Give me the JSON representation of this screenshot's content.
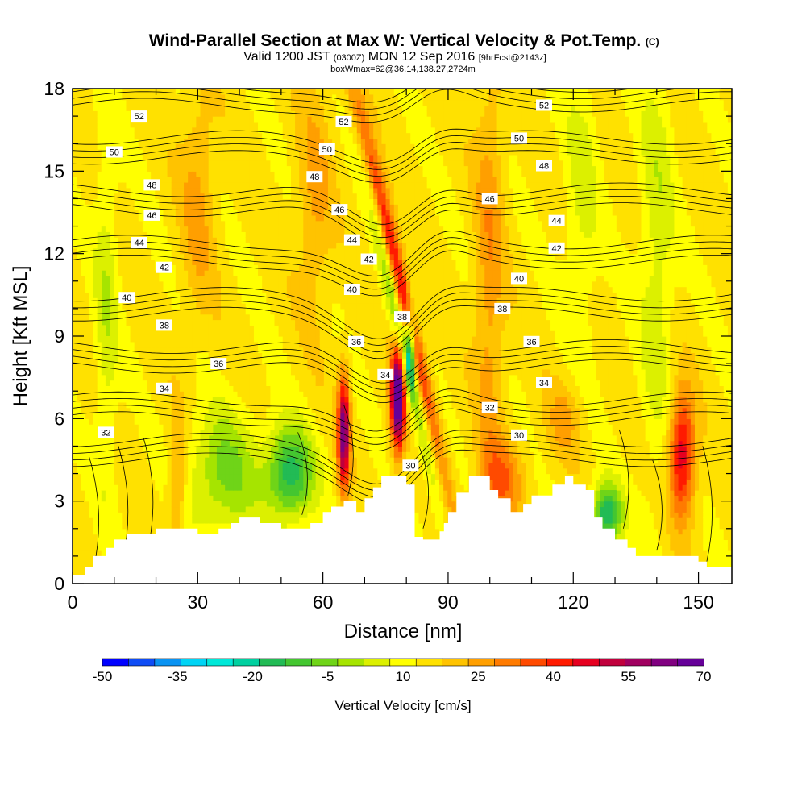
{
  "chart_data": {
    "type": "heatmap",
    "title": "Wind-Parallel Section at Max W: Vertical Velocity & Pot.Temp.",
    "title_mark": "(C)",
    "subtitle_main_a": "Valid 1200 JST",
    "subtitle_small_a": "(0300Z)",
    "subtitle_main_b": "MON 12 Sep 2016",
    "subtitle_small_b": "[9hrFcst@2143z]",
    "subtitle2": "boxWmax=62@36.14,138.27,2724m",
    "xlabel": "Distance [nm]",
    "ylabel": "Height [Kft MSL]",
    "xlim": [
      0,
      158
    ],
    "ylim": [
      0,
      18
    ],
    "x_ticks": [
      "0",
      "30",
      "60",
      "90",
      "120",
      "150"
    ],
    "x_tick_values": [
      0,
      30,
      60,
      90,
      120,
      150
    ],
    "y_ticks": [
      "0",
      "3",
      "6",
      "9",
      "12",
      "15",
      "18"
    ],
    "y_tick_values": [
      0,
      3,
      6,
      9,
      12,
      15,
      18
    ],
    "colorbar": {
      "label": "Vertical Velocity [cm/s]",
      "tick_labels": [
        "-50",
        "-35",
        "-20",
        "-5",
        "10",
        "25",
        "40",
        "55",
        "70"
      ],
      "tick_values": [
        -50,
        -35,
        -20,
        -5,
        10,
        25,
        40,
        55,
        70
      ],
      "colors": [
        "#0000ff",
        "#0f4cf5",
        "#0a93f2",
        "#00d4f5",
        "#00e8d8",
        "#00d0a0",
        "#22bb55",
        "#44c630",
        "#6fd418",
        "#a6e400",
        "#dcf000",
        "#ffff00",
        "#ffe100",
        "#ffc300",
        "#ff9f00",
        "#ff7b00",
        "#ff4a00",
        "#ff1a00",
        "#e60020",
        "#c0003c",
        "#a00060",
        "#800080",
        "#660099"
      ]
    },
    "terrain": {
      "x_nm": [
        0,
        3,
        5,
        8,
        10,
        13,
        15,
        20,
        25,
        30,
        33,
        35,
        38,
        40,
        45,
        50,
        55,
        57,
        60,
        62,
        65,
        68,
        70,
        72,
        74,
        77,
        80,
        82,
        84,
        86,
        88,
        89,
        90,
        92,
        95,
        98,
        100,
        102,
        105,
        108,
        110,
        115,
        118,
        120,
        123,
        125,
        127,
        130,
        133,
        135,
        138,
        140,
        145,
        150,
        152,
        155,
        158
      ],
      "height_kft": [
        0.3,
        0.6,
        1.0,
        1.3,
        1.6,
        1.8,
        1.8,
        2.0,
        2.0,
        1.8,
        1.8,
        2.0,
        2.2,
        2.4,
        2.2,
        2.0,
        2.0,
        2.2,
        2.6,
        2.8,
        3.0,
        2.6,
        3.1,
        3.5,
        3.9,
        3.9,
        3.6,
        1.7,
        1.6,
        1.6,
        1.9,
        2.2,
        2.6,
        3.3,
        3.9,
        3.9,
        3.4,
        3.1,
        2.6,
        2.9,
        3.2,
        3.6,
        3.9,
        3.6,
        3.4,
        2.4,
        2.0,
        1.6,
        1.3,
        1.0,
        1.0,
        1.0,
        1.0,
        0.8,
        0.6,
        0.6,
        0.6
      ]
    },
    "theta_contours": [
      30,
      32,
      34,
      36,
      38,
      40,
      42,
      44,
      46,
      48,
      50,
      52
    ],
    "theta_labels": [
      {
        "text": "52",
        "x": 16,
        "y": 17.0
      },
      {
        "text": "50",
        "x": 10,
        "y": 15.7
      },
      {
        "text": "48",
        "x": 19,
        "y": 14.5
      },
      {
        "text": "46",
        "x": 19,
        "y": 13.4
      },
      {
        "text": "44",
        "x": 16,
        "y": 12.4
      },
      {
        "text": "42",
        "x": 22,
        "y": 11.5
      },
      {
        "text": "40",
        "x": 13,
        "y": 10.4
      },
      {
        "text": "38",
        "x": 22,
        "y": 9.4
      },
      {
        "text": "36",
        "x": 35,
        "y": 8.0
      },
      {
        "text": "34",
        "x": 22,
        "y": 7.1
      },
      {
        "text": "32",
        "x": 8,
        "y": 5.5
      },
      {
        "text": "52",
        "x": 65,
        "y": 16.8
      },
      {
        "text": "50",
        "x": 61,
        "y": 15.8
      },
      {
        "text": "48",
        "x": 58,
        "y": 14.8
      },
      {
        "text": "46",
        "x": 64,
        "y": 13.6
      },
      {
        "text": "44",
        "x": 67,
        "y": 12.5
      },
      {
        "text": "42",
        "x": 71,
        "y": 11.8
      },
      {
        "text": "40",
        "x": 67,
        "y": 10.7
      },
      {
        "text": "38",
        "x": 79,
        "y": 9.7
      },
      {
        "text": "36",
        "x": 68,
        "y": 8.8
      },
      {
        "text": "34",
        "x": 75,
        "y": 7.6
      },
      {
        "text": "30",
        "x": 81,
        "y": 4.3
      },
      {
        "text": "52",
        "x": 113,
        "y": 17.4
      },
      {
        "text": "50",
        "x": 107,
        "y": 16.2
      },
      {
        "text": "48",
        "x": 113,
        "y": 15.2
      },
      {
        "text": "46",
        "x": 100,
        "y": 14.0
      },
      {
        "text": "44",
        "x": 116,
        "y": 13.2
      },
      {
        "text": "42",
        "x": 116,
        "y": 12.2
      },
      {
        "text": "40",
        "x": 107,
        "y": 11.1
      },
      {
        "text": "38",
        "x": 103,
        "y": 10.0
      },
      {
        "text": "36",
        "x": 110,
        "y": 8.8
      },
      {
        "text": "34",
        "x": 113,
        "y": 7.3
      },
      {
        "text": "32",
        "x": 100,
        "y": 6.4
      },
      {
        "text": "30",
        "x": 107,
        "y": 5.4
      }
    ]
  }
}
